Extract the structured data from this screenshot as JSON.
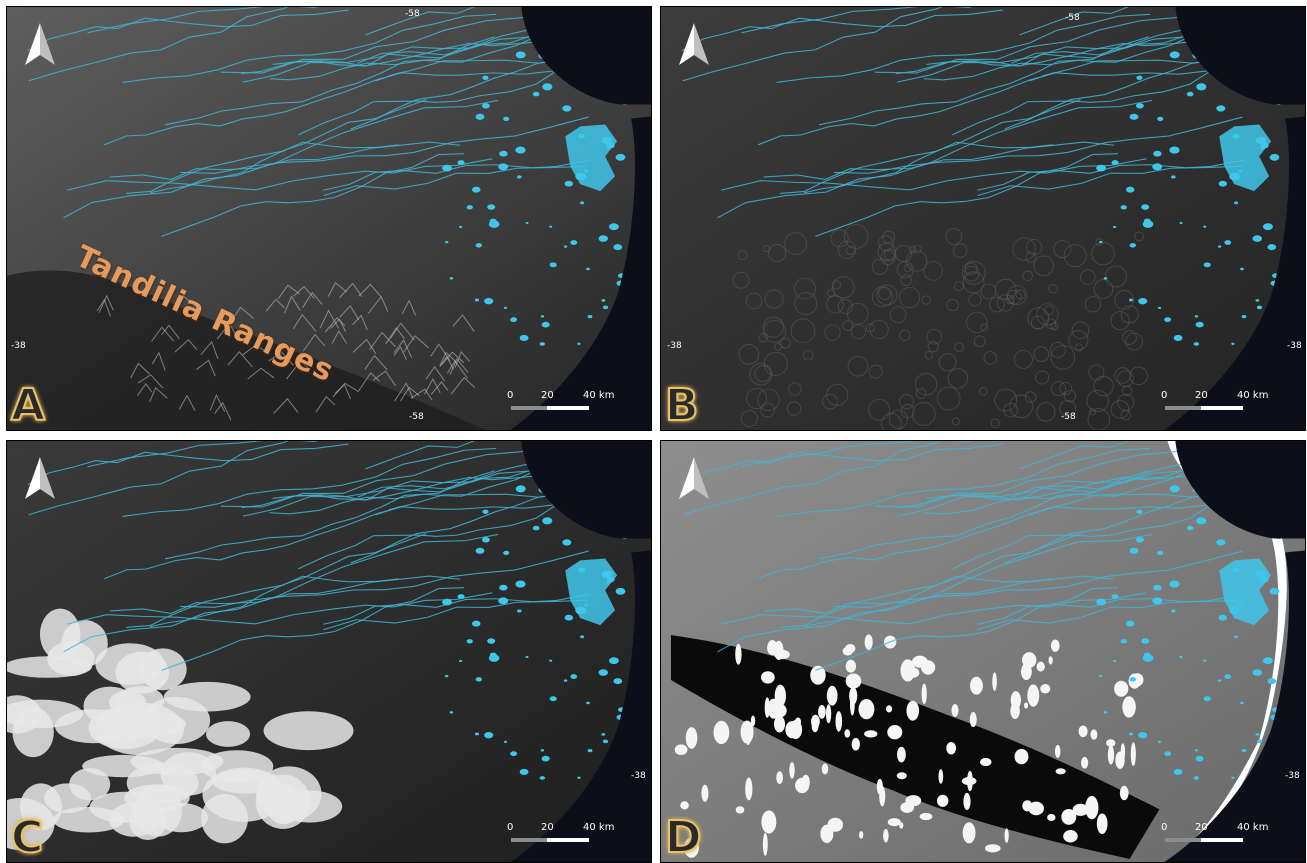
{
  "panels": [
    {
      "id": "A",
      "letter": "A",
      "style": "hillshade",
      "bg": "#3b3b3b",
      "label": "Tandilia Ranges",
      "coords": {
        "top": "-58",
        "left": "-38",
        "bottom": "-58",
        "right": ""
      },
      "scale": {
        "t0": "0",
        "t1": "20",
        "t2": "40 km"
      }
    },
    {
      "id": "B",
      "letter": "B",
      "style": "dark-texture",
      "bg": "#2f2f2f",
      "label": "",
      "coords": {
        "top": "-58",
        "left": "-38",
        "bottom": "-58",
        "right": "-38"
      },
      "scale": {
        "t0": "0",
        "t1": "20",
        "t2": "40 km"
      }
    },
    {
      "id": "C",
      "letter": "C",
      "style": "bright-highlands",
      "bg": "#2c2c2c",
      "label": "",
      "coords": {
        "top": "",
        "left": "",
        "bottom": "",
        "right": "-38"
      },
      "scale": {
        "t0": "0",
        "t1": "20",
        "t2": "40 km"
      }
    },
    {
      "id": "D",
      "letter": "D",
      "style": "grey-contrast",
      "bg": "#7a7a7a",
      "label": "",
      "coords": {
        "top": "",
        "left": "",
        "bottom": "",
        "right": "-38"
      },
      "scale": {
        "t0": "0",
        "t1": "20",
        "t2": "40 km"
      }
    }
  ],
  "colors": {
    "drainage": "#3fb6d3",
    "lakes": "#3ec7ea",
    "sea": "#0c0f1a",
    "letter_fill": "#2a2a2a",
    "letter_glow": "#e8c26a",
    "label": "#e59a5f"
  },
  "icons": {
    "north": "north-arrow-icon"
  }
}
